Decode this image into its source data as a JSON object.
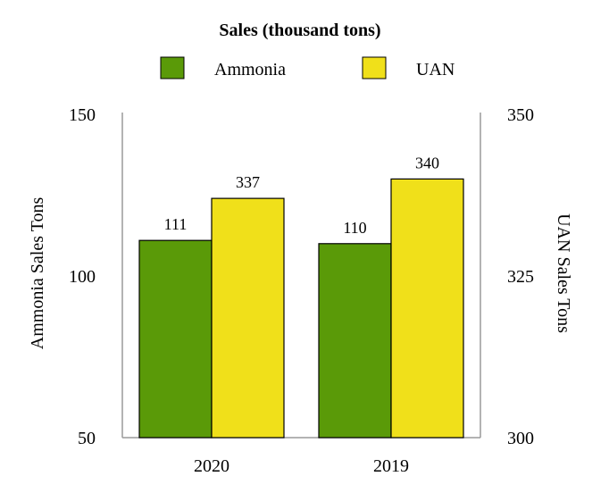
{
  "chart_data": {
    "type": "bar",
    "title": "Sales (thousand tons)",
    "categories": [
      "2020",
      "2019"
    ],
    "series": [
      {
        "name": "Ammonia",
        "values": [
          111,
          110
        ],
        "axis": "left",
        "color": "#5a9a08"
      },
      {
        "name": "UAN",
        "values": [
          337,
          340
        ],
        "axis": "right",
        "color": "#f0e01a"
      }
    ],
    "ylabel_left": "Ammonia Sales Tons",
    "ylabel_right": "UAN Sales Tons",
    "ylim_left": [
      50,
      150
    ],
    "ylim_right": [
      300,
      350
    ],
    "yticks_left": [
      "50",
      "100",
      "150"
    ],
    "yticks_right": [
      "300",
      "325",
      "350"
    ],
    "legend_position": "top",
    "grid": false
  }
}
